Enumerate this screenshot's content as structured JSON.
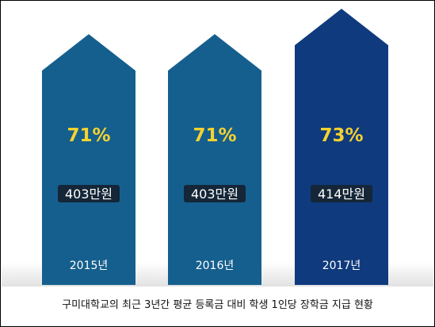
{
  "caption": "구미대학교의 최근 3년간 평균 등록금 대비 학생 1인당 장학금 지급 현황",
  "colors": {
    "bar_normal": "#155f8e",
    "bar_highlight": "#0f3a7d",
    "percent_text": "#f6d22e",
    "label_box": "#142637"
  },
  "chart_data": {
    "type": "bar",
    "categories": [
      "2015년",
      "2016년",
      "2017년"
    ],
    "values": [
      71,
      71,
      73
    ],
    "value_labels": [
      "71%",
      "71%",
      "73%"
    ],
    "amount_labels": [
      "403만원",
      "403만원",
      "414만원"
    ],
    "highlight_index": 2,
    "grid": false,
    "legend": "none"
  }
}
